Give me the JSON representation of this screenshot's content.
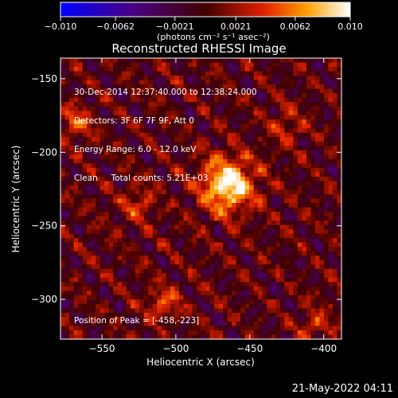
{
  "chart_data": {
    "type": "heatmap",
    "title": "Reconstructed RHESSI Image",
    "xlabel": "Heliocentric X (arcsec)",
    "ylabel": "Heliocentric Y (arcsec)",
    "xlim": [
      -578,
      -388
    ],
    "ylim": [
      -327,
      -136
    ],
    "x_ticks": [
      -550,
      -500,
      -450,
      -400
    ],
    "y_ticks": [
      -150,
      -200,
      -250,
      -300
    ],
    "x_tick_labels": [
      "−550",
      "−500",
      "−450",
      "−400"
    ],
    "y_tick_labels": [
      "−150",
      "−200",
      "−250",
      "−300"
    ],
    "colorbar": {
      "range": [
        -0.01,
        0.01
      ],
      "ticks": [
        -0.01,
        -0.0062,
        -0.0021,
        0.0021,
        0.0062,
        0.01
      ],
      "tick_labels": [
        "−0.010",
        "−0.0062",
        "−0.0021",
        "0.0021",
        "0.0062",
        "0.010"
      ],
      "unit_label": "(photons cm⁻² s⁻¹ asec⁻²)"
    },
    "annotations": [
      "30-Dec-2014 12:37:40.000 to 12:38:24.000",
      "Detectors: 3F 6F 7F 9F, Att 0",
      "Energy Range: 6.0 - 12.0 keV",
      "Clean     Total counts: 5.21E+03"
    ],
    "peak_label": "Position of Peak = [-458,-223]",
    "peak": [
      -458,
      -223
    ],
    "sources": [
      {
        "x": -465,
        "y": -222,
        "amp": 1.0,
        "sigma": 13
      },
      {
        "x": -568,
        "y": -180,
        "amp": 0.45,
        "sigma": 8
      },
      {
        "x": -508,
        "y": -303,
        "amp": 0.45,
        "sigma": 8
      },
      {
        "x": -525,
        "y": -235,
        "amp": 0.4,
        "sigma": 8
      },
      {
        "x": -425,
        "y": -182,
        "amp": 0.3,
        "sigma": 9
      },
      {
        "x": -405,
        "y": -318,
        "amp": 0.35,
        "sigma": 8
      }
    ]
  },
  "footer": {
    "date": "21-May-2022 04:11"
  },
  "colors": {
    "background": "#000000"
  }
}
